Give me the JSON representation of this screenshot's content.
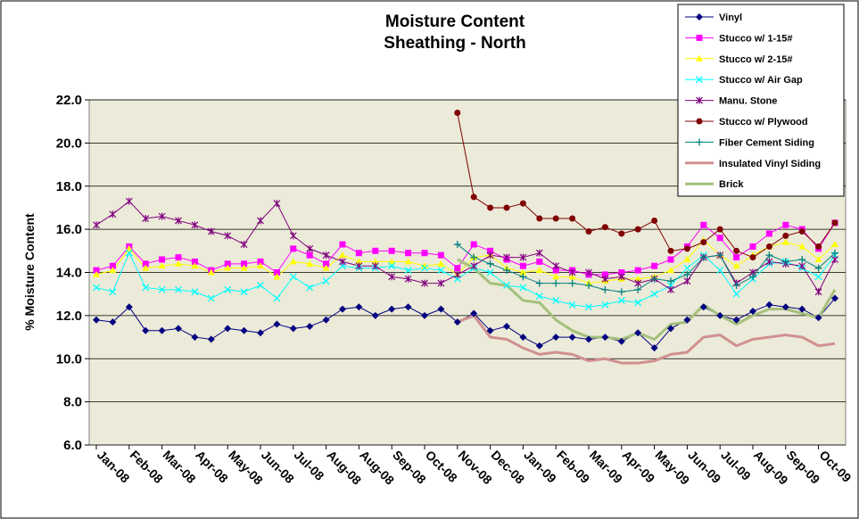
{
  "chart_data": {
    "type": "line",
    "title": "Moisture Content",
    "subtitle": "Sheathing - North",
    "y_label": "% Moisture Content",
    "categories": [
      "Jan-08",
      null,
      "Feb-08",
      null,
      "Mar-08",
      null,
      "Apr-08",
      null,
      "May-08",
      null,
      "Jun-08",
      null,
      "Jul-08",
      null,
      "Aug-08",
      null,
      "Aug-08",
      null,
      "Sep-08",
      null,
      "Oct-08",
      null,
      "Nov-08",
      null,
      "Dec-08",
      null,
      "Jan-09",
      null,
      "Feb-09",
      null,
      "Mar-09",
      null,
      "Apr-09",
      null,
      "May-09",
      null,
      "Jun-09",
      null,
      "Jul-09",
      null,
      "Aug-09",
      null,
      "Sep-09",
      null,
      "Oct-09",
      null
    ],
    "ylim": [
      6,
      22
    ],
    "yticks": [
      {
        "value": 6,
        "label": "6.0"
      },
      {
        "value": 8,
        "label": "8.0"
      },
      {
        "value": 10,
        "label": "10.0"
      },
      {
        "value": 12,
        "label": "12.0"
      },
      {
        "value": 14,
        "label": "14.0"
      },
      {
        "value": 16,
        "label": "16.0"
      },
      {
        "value": 18,
        "label": "18.0"
      },
      {
        "value": 20,
        "label": "20.0"
      },
      {
        "value": 22,
        "label": "22.0"
      }
    ],
    "grid": true,
    "legend": "top-right",
    "series": [
      {
        "name": "Vinyl",
        "color": "#000080",
        "marker": "diamond",
        "line_width": 1,
        "values": [
          11.8,
          11.7,
          12.4,
          11.3,
          11.3,
          11.4,
          11.0,
          10.9,
          11.4,
          11.3,
          11.2,
          11.6,
          11.4,
          11.5,
          11.8,
          12.3,
          12.4,
          12.0,
          12.3,
          12.4,
          12.0,
          12.3,
          11.7,
          12.1,
          11.3,
          11.5,
          11.0,
          10.6,
          11.0,
          11.0,
          10.9,
          11.0,
          10.8,
          11.2,
          10.5,
          11.4,
          11.8,
          12.4,
          12.0,
          11.8,
          12.2,
          12.5,
          12.4,
          12.3,
          11.9,
          12.8
        ]
      },
      {
        "name": "Stucco w/ 1-15#",
        "color": "#ff00ff",
        "marker": "square",
        "line_width": 1,
        "values": [
          14.1,
          14.3,
          15.2,
          14.4,
          14.6,
          14.7,
          14.5,
          14.1,
          14.4,
          14.4,
          14.5,
          14.0,
          15.1,
          14.8,
          14.4,
          15.3,
          14.9,
          15.0,
          15.0,
          14.9,
          14.9,
          14.8,
          14.2,
          15.3,
          15.0,
          14.6,
          14.3,
          14.5,
          14.1,
          14.1,
          13.9,
          13.9,
          14.0,
          14.1,
          14.3,
          14.6,
          15.2,
          16.2,
          15.6,
          14.7,
          15.2,
          15.8,
          16.2,
          16.0,
          15.1,
          16.3
        ]
      },
      {
        "name": "Stucco w/ 2-15#",
        "color": "#ffff00",
        "marker": "triangle",
        "line_width": 1,
        "values": [
          13.9,
          14.1,
          15.1,
          14.2,
          14.3,
          14.4,
          14.3,
          14.0,
          14.2,
          14.2,
          14.3,
          13.8,
          14.5,
          14.4,
          14.2,
          14.8,
          14.5,
          14.5,
          14.5,
          14.5,
          14.3,
          14.4,
          13.9,
          14.7,
          14.8,
          14.2,
          14.0,
          14.1,
          13.8,
          13.8,
          13.5,
          13.6,
          13.7,
          13.7,
          13.8,
          14.1,
          14.6,
          15.5,
          14.8,
          14.3,
          14.8,
          15.2,
          15.4,
          15.2,
          14.6,
          15.3
        ]
      },
      {
        "name": "Stucco w/ Air Gap",
        "color": "#00ffff",
        "marker": "x",
        "line_width": 1,
        "values": [
          13.3,
          13.1,
          14.9,
          13.3,
          13.2,
          13.2,
          13.1,
          12.8,
          13.2,
          13.1,
          13.4,
          12.8,
          13.8,
          13.3,
          13.6,
          14.3,
          14.2,
          14.2,
          14.3,
          14.1,
          14.2,
          14.1,
          13.7,
          14.2,
          14.0,
          13.4,
          13.3,
          12.9,
          12.7,
          12.5,
          12.4,
          12.5,
          12.7,
          12.6,
          13.0,
          13.4,
          14.2,
          14.8,
          14.1,
          13.0,
          13.7,
          14.4,
          14.5,
          14.2,
          13.8,
          14.8
        ]
      },
      {
        "name": "Manu. Stone",
        "color": "#800080",
        "marker": "star",
        "line_width": 1,
        "values": [
          16.2,
          16.7,
          17.3,
          16.5,
          16.6,
          16.4,
          16.2,
          15.9,
          15.7,
          15.3,
          16.4,
          17.2,
          15.7,
          15.1,
          14.8,
          14.5,
          14.3,
          14.3,
          13.8,
          13.7,
          13.5,
          13.5,
          13.9,
          14.3,
          14.8,
          14.7,
          14.7,
          14.9,
          14.3,
          14.0,
          14.0,
          13.7,
          13.8,
          13.5,
          13.7,
          13.2,
          13.6,
          14.7,
          14.8,
          13.5,
          14.0,
          14.5,
          14.4,
          14.3,
          13.1,
          14.6
        ]
      },
      {
        "name": "Stucco w/ Plywood",
        "color": "#800000",
        "marker": "circle",
        "line_width": 1,
        "values": [
          null,
          null,
          null,
          null,
          null,
          null,
          null,
          null,
          null,
          null,
          null,
          null,
          null,
          null,
          null,
          null,
          null,
          null,
          null,
          null,
          null,
          null,
          21.4,
          17.5,
          17.0,
          17.0,
          17.2,
          16.5,
          16.5,
          16.5,
          15.9,
          16.1,
          15.8,
          16.0,
          16.4,
          15.0,
          15.1,
          15.4,
          16.0,
          15.0,
          14.7,
          15.2,
          15.7,
          15.9,
          15.2,
          16.3
        ]
      },
      {
        "name": "Fiber Cement Siding",
        "color": "#008080",
        "marker": "plus",
        "line_width": 1,
        "values": [
          null,
          null,
          null,
          null,
          null,
          null,
          null,
          null,
          null,
          null,
          null,
          null,
          null,
          null,
          null,
          null,
          null,
          null,
          null,
          null,
          null,
          null,
          15.3,
          14.7,
          14.4,
          14.1,
          13.8,
          13.5,
          13.5,
          13.5,
          13.4,
          13.2,
          13.1,
          13.2,
          13.7,
          13.6,
          13.9,
          14.7,
          14.8,
          13.4,
          13.8,
          14.8,
          14.5,
          14.6,
          14.2,
          14.9
        ]
      },
      {
        "name": "Insulated Vinyl Siding",
        "color": "#d09090",
        "marker": null,
        "line_width": 3,
        "values": [
          null,
          null,
          null,
          null,
          null,
          null,
          null,
          null,
          null,
          null,
          null,
          null,
          null,
          null,
          null,
          null,
          null,
          null,
          null,
          null,
          null,
          null,
          11.7,
          12.0,
          11.0,
          10.9,
          10.5,
          10.2,
          10.3,
          10.2,
          9.9,
          10.0,
          9.8,
          9.8,
          9.9,
          10.2,
          10.3,
          11.0,
          11.1,
          10.6,
          10.9,
          11.0,
          11.1,
          11.0,
          10.6,
          10.7
        ]
      },
      {
        "name": "Brick",
        "color": "#a4c07c",
        "marker": null,
        "line_width": 3,
        "values": [
          null,
          null,
          null,
          null,
          null,
          null,
          null,
          null,
          null,
          null,
          null,
          null,
          null,
          null,
          null,
          null,
          null,
          null,
          null,
          null,
          null,
          null,
          14.6,
          14.2,
          13.5,
          13.4,
          12.7,
          12.6,
          11.8,
          11.3,
          11.0,
          11.0,
          10.9,
          11.2,
          10.9,
          11.6,
          11.7,
          12.5,
          12.0,
          11.6,
          12.0,
          12.3,
          12.3,
          12.1,
          11.9,
          13.2
        ]
      }
    ]
  }
}
